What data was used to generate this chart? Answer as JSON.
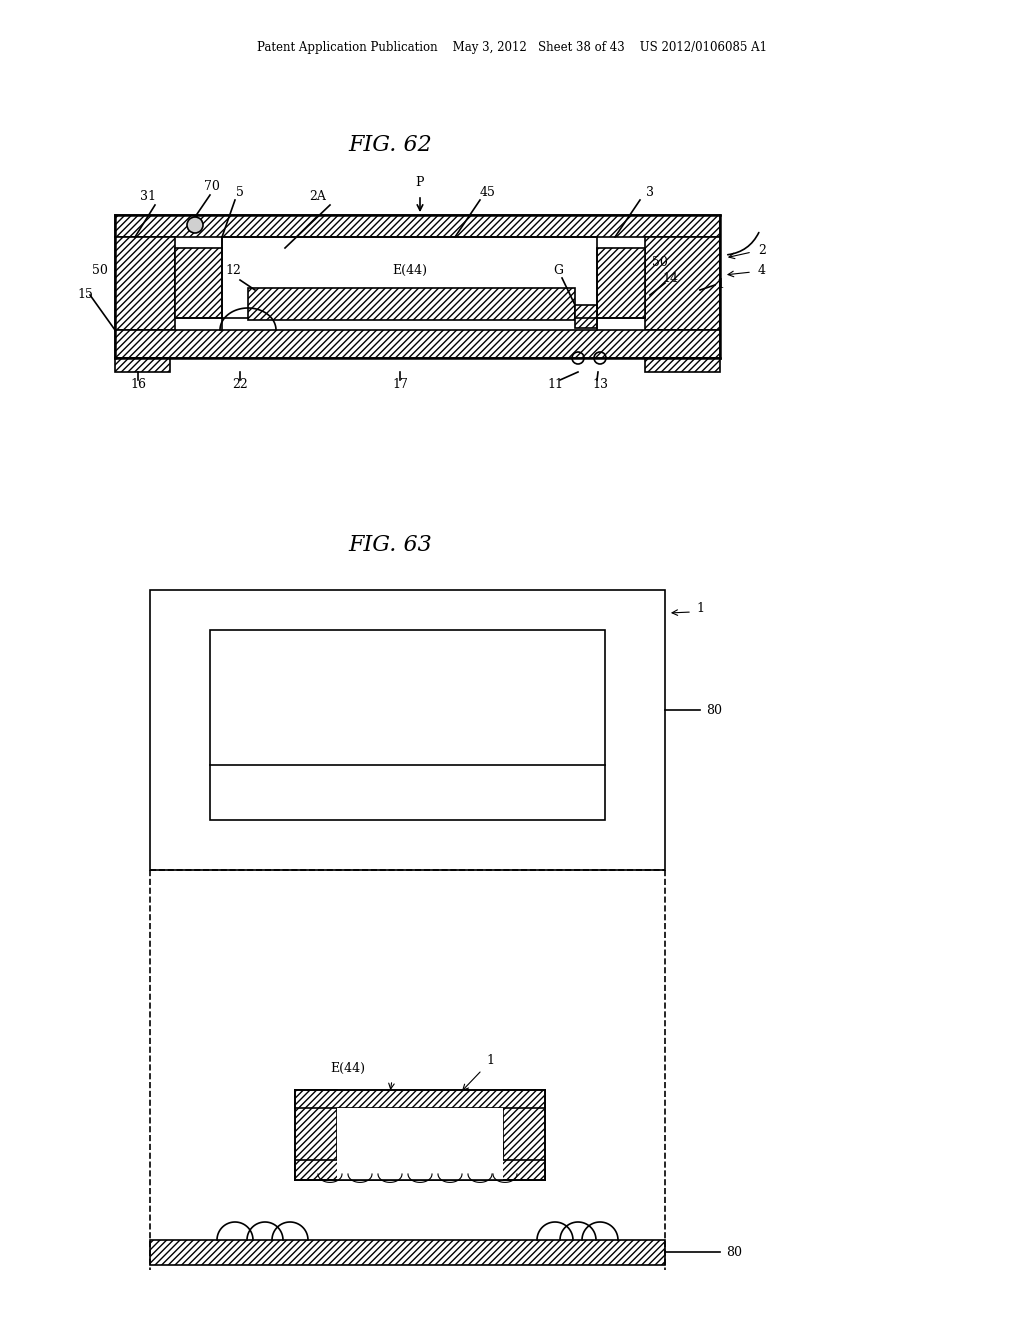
{
  "bg_color": "#ffffff",
  "line_color": "#000000",
  "header_text": "Patent Application Publication    May 3, 2012   Sheet 38 of 43    US 2012/0106085 A1",
  "fig62_title": "FIG. 62",
  "fig63_title": "FIG. 63"
}
